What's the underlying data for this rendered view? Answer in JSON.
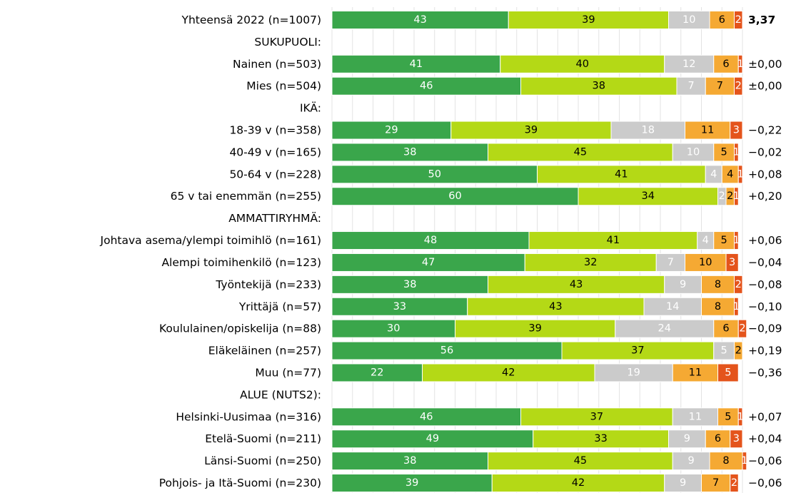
{
  "chart_data": {
    "type": "stacked-bar-horizontal",
    "categories": [
      "Yhteensä 2022 (n=1007)",
      "SUKUPUOLI:",
      "Nainen (n=503)",
      "Mies (n=504)",
      "IKÄ:",
      "18-39 v (n=358)",
      "40-49 v (n=165)",
      "50-64 v (n=228)",
      "65 v tai enemmän (n=255)",
      "AMMATTIRYHMÄ:",
      "Johtava asema/ylempi toimihlö (n=161)",
      "Alempi toimihenkilö (n=123)",
      "Työntekijä (n=233)",
      "Yrittäjä (n=57)",
      "Koululainen/opiskelija (n=88)",
      "Eläkeläinen (n=257)",
      "Muu (n=77)",
      "ALUE (NUTS2):",
      "Helsinki-Uusimaa (n=316)",
      "Etelä-Suomi (n=211)",
      "Länsi-Suomi (n=250)",
      "Pohjois- ja Itä-Suomi (n=230)"
    ],
    "series": [
      {
        "color": "#3aa64b",
        "text_color": "#ffffff",
        "values": [
          43,
          null,
          41,
          46,
          null,
          29,
          38,
          50,
          60,
          null,
          48,
          47,
          38,
          33,
          30,
          56,
          22,
          null,
          46,
          49,
          38,
          39
        ]
      },
      {
        "color": "#b4d916",
        "text_color": "#000000",
        "values": [
          39,
          null,
          40,
          38,
          null,
          39,
          45,
          41,
          34,
          null,
          41,
          32,
          43,
          43,
          39,
          37,
          42,
          null,
          37,
          33,
          45,
          42
        ]
      },
      {
        "color": "#cbcbcb",
        "text_color": "#ffffff",
        "values": [
          10,
          null,
          12,
          7,
          null,
          18,
          10,
          4,
          2,
          null,
          4,
          7,
          9,
          14,
          24,
          5,
          19,
          null,
          11,
          9,
          9,
          9
        ]
      },
      {
        "color": "#f5a933",
        "text_color": "#000000",
        "values": [
          6,
          null,
          6,
          7,
          null,
          11,
          5,
          4,
          2,
          null,
          5,
          10,
          8,
          8,
          6,
          2,
          11,
          null,
          5,
          6,
          8,
          7
        ]
      },
      {
        "color": "#e4541c",
        "text_color": "#ffffff",
        "values": [
          2,
          null,
          1,
          2,
          null,
          3,
          1,
          1,
          1,
          null,
          1,
          3,
          2,
          1,
          2,
          0,
          5,
          null,
          1,
          3,
          1,
          2
        ]
      }
    ],
    "side_labels": [
      "3,37",
      null,
      "±0,00",
      "±0,00",
      null,
      "−0,22",
      "−0,02",
      "+0,08",
      "+0,20",
      null,
      "+0,06",
      "−0,04",
      "−0,08",
      "−0,10",
      "−0,09",
      "+0,19",
      "−0,36",
      null,
      "+0,07",
      "+0,04",
      "−0,06",
      "−0,06"
    ],
    "bold_side_label_index": 0,
    "xlim": [
      0,
      100
    ],
    "xticks": [
      0,
      5,
      10,
      15,
      20,
      25,
      30,
      35,
      40,
      45,
      50,
      55,
      60,
      65,
      70,
      75,
      80,
      85,
      90,
      95,
      100
    ],
    "grid": true
  }
}
